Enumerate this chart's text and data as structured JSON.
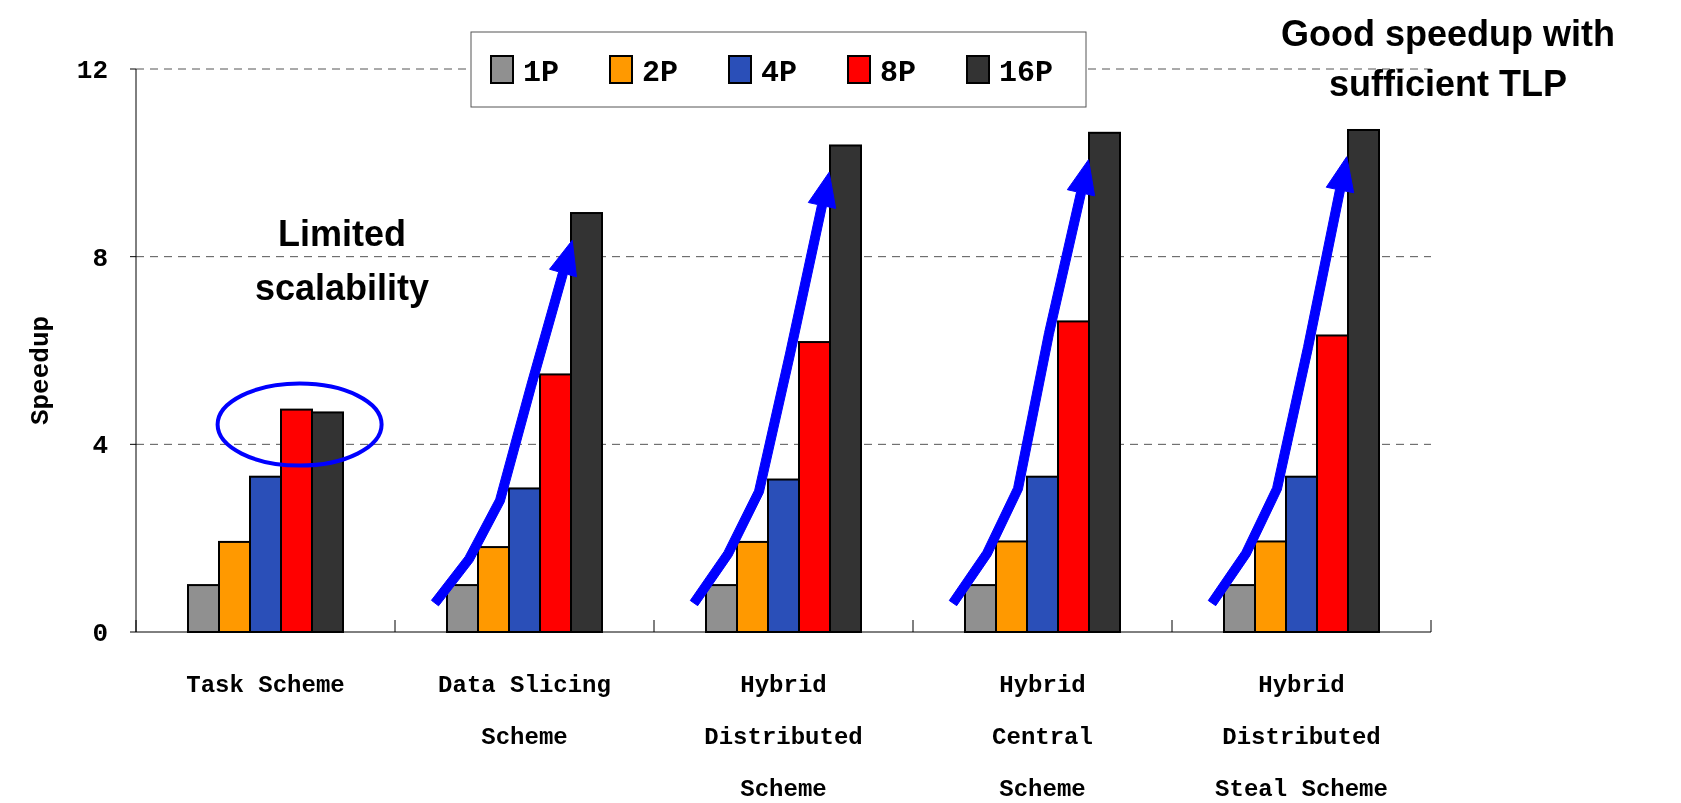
{
  "chart_data": {
    "type": "bar",
    "ylabel": "Speedup",
    "categories": [
      "Task Scheme",
      "Data Slicing\nScheme",
      "Hybrid\nDistributed\nScheme",
      "Hybrid\nCentral\nScheme",
      "Hybrid\nDistributed\nSteal Scheme"
    ],
    "series": [
      {
        "name": "1P",
        "color": "#909090",
        "values": [
          1.0,
          1.0,
          1.0,
          1.0,
          1.0
        ]
      },
      {
        "name": "2P",
        "color": "#ff9900",
        "values": [
          1.92,
          1.81,
          1.92,
          1.93,
          1.93
        ]
      },
      {
        "name": "4P",
        "color": "#2a4fb8",
        "values": [
          3.31,
          3.06,
          3.25,
          3.31,
          3.31
        ]
      },
      {
        "name": "8P",
        "color": "#ff0000",
        "values": [
          4.74,
          5.49,
          6.18,
          6.62,
          6.32
        ]
      },
      {
        "name": "16P",
        "color": "#333333",
        "values": [
          4.68,
          8.93,
          10.37,
          10.64,
          10.7
        ]
      }
    ],
    "ylim": [
      0,
      12
    ],
    "yticks": [
      0,
      4,
      8,
      12
    ],
    "grid": "y",
    "legend": "top",
    "annotations": [
      "Limited scalability",
      "Good speedup with sufficient TLP"
    ]
  }
}
